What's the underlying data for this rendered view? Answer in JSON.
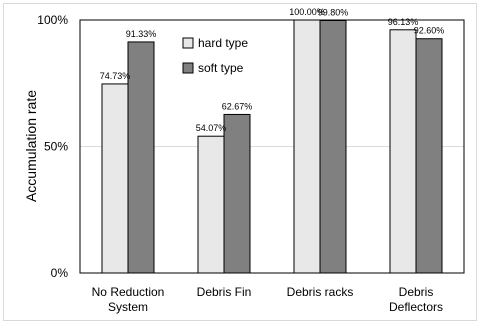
{
  "chart_data": {
    "type": "bar",
    "categories": [
      [
        "No Reduction",
        "System"
      ],
      [
        "Debris Fin"
      ],
      [
        "Debris racks"
      ],
      [
        "Debris",
        "Deflectors"
      ]
    ],
    "series": [
      {
        "name": "hard type",
        "color": "#e8e8e8",
        "values": [
          74.73,
          54.07,
          100.0,
          96.13
        ],
        "labels": [
          "74.73%",
          "54.07%",
          "100.00%",
          "96.13%"
        ]
      },
      {
        "name": "soft type",
        "color": "#808080",
        "values": [
          91.33,
          62.67,
          99.8,
          92.6
        ],
        "labels": [
          "91.33%",
          "62.67%",
          "99.80%",
          "92.60%"
        ]
      }
    ],
    "ylabel": "Accumulation rate",
    "xlabel": "",
    "ylim": [
      0,
      100
    ],
    "yticks": [
      0,
      50,
      100
    ],
    "ytick_labels": [
      "0%",
      "50%",
      "100%"
    ],
    "grid": true,
    "legend_position": "top-right"
  }
}
